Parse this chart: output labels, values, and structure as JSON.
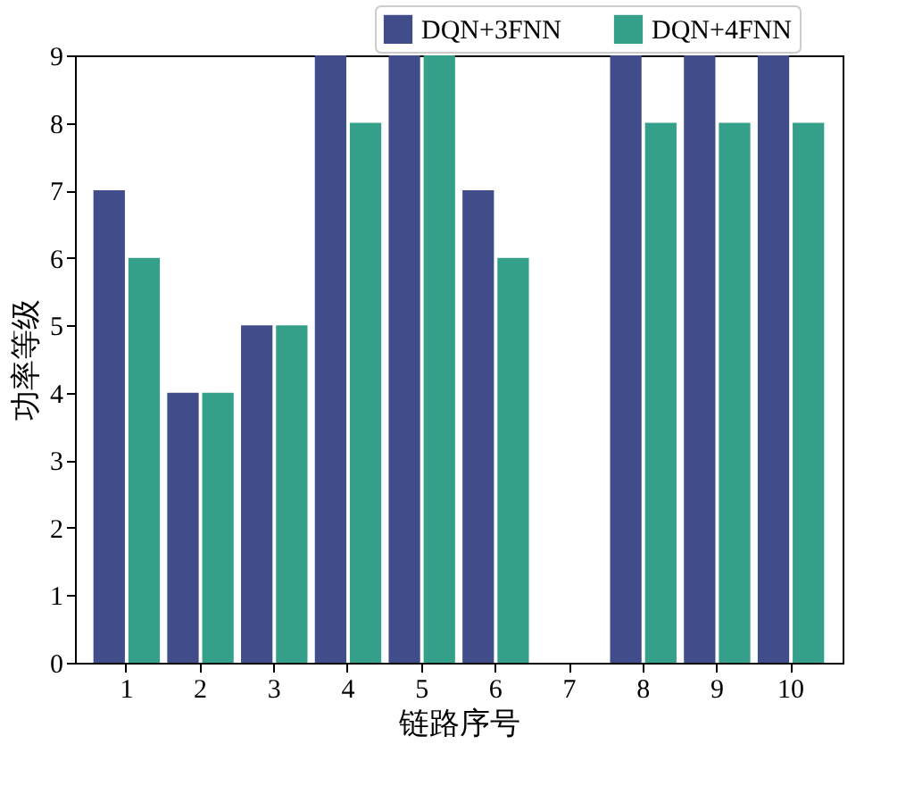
{
  "chart_data": {
    "type": "bar",
    "xlabel": "链路序号",
    "ylabel": "功率等级",
    "categories": [
      "1",
      "2",
      "3",
      "4",
      "5",
      "6",
      "7",
      "8",
      "9",
      "10"
    ],
    "series": [
      {
        "name": "DQN+3FNN",
        "color": "#414d8a",
        "values": [
          7,
          4,
          5,
          9,
          9,
          7,
          0,
          9,
          9,
          9
        ]
      },
      {
        "name": "DQN+4FNN",
        "color": "#35a08a",
        "values": [
          6,
          4,
          5,
          8,
          9,
          6,
          0,
          8,
          8,
          8
        ]
      }
    ],
    "ylim": [
      0,
      9
    ],
    "yticks": [
      0,
      1,
      2,
      3,
      4,
      5,
      6,
      7,
      8,
      9
    ],
    "grid": false,
    "legend": "top right"
  }
}
